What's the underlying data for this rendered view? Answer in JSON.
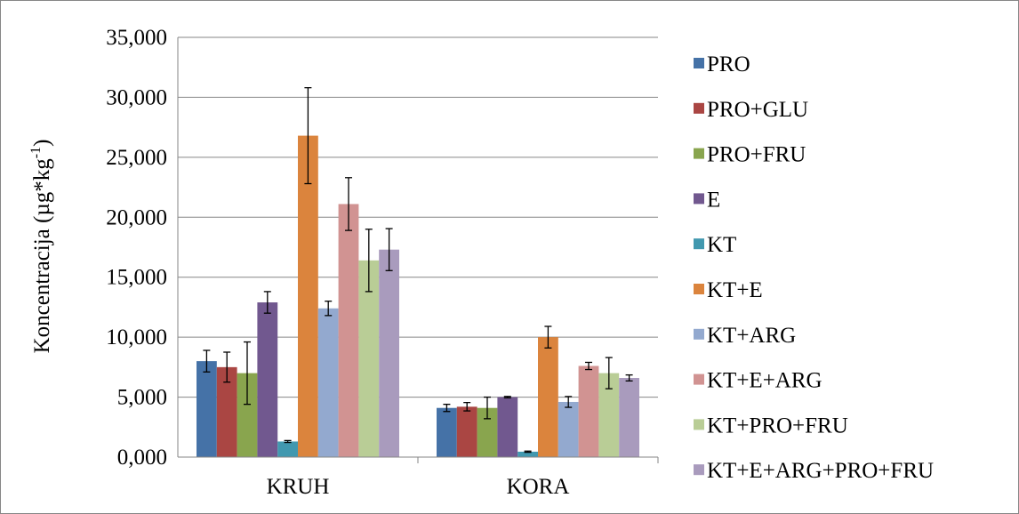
{
  "chart_data": {
    "type": "bar",
    "categories": [
      "KRUH",
      "KORA"
    ],
    "ylabel": "Koncentracija (µg*kg-1)",
    "ylabel_base": "Koncentracija (µg*kg",
    "ylabel_sup": "-1",
    "ylabel_close": ")",
    "ylim": [
      0,
      35000
    ],
    "yticks": [
      0,
      5000,
      10000,
      15000,
      20000,
      25000,
      30000,
      35000
    ],
    "ytick_labels": [
      "0,000",
      "5,000",
      "10,000",
      "15,000",
      "20,000",
      "25,000",
      "30,000",
      "35,000"
    ],
    "grid": true,
    "legend_position": "right",
    "error_bars": true,
    "series": [
      {
        "name": "PRO",
        "color": "#4572a7",
        "values": [
          8000,
          4100
        ],
        "errors": [
          900,
          300
        ]
      },
      {
        "name": "PRO+GLU",
        "color": "#aa4643",
        "values": [
          7500,
          4200
        ],
        "errors": [
          1250,
          350
        ]
      },
      {
        "name": "PRO+FRU",
        "color": "#89a54e",
        "values": [
          7000,
          4100
        ],
        "errors": [
          2600,
          900
        ]
      },
      {
        "name": "E",
        "color": "#71588f",
        "values": [
          12900,
          5000
        ],
        "errors": [
          900,
          60
        ]
      },
      {
        "name": "KT",
        "color": "#4198af",
        "values": [
          1300,
          450
        ],
        "errors": [
          80,
          50
        ]
      },
      {
        "name": "KT+E",
        "color": "#db843d",
        "values": [
          26800,
          10000
        ],
        "errors": [
          4000,
          900
        ]
      },
      {
        "name": "KT+ARG",
        "color": "#93a9cf",
        "values": [
          12400,
          4600
        ],
        "errors": [
          600,
          450
        ]
      },
      {
        "name": "KT+E+ARG",
        "color": "#d19392",
        "values": [
          21100,
          7600
        ],
        "errors": [
          2200,
          300
        ]
      },
      {
        "name": "KT+PRO+FRU",
        "color": "#b9cd96",
        "values": [
          16400,
          7000
        ],
        "errors": [
          2600,
          1300
        ]
      },
      {
        "name": "KT+E+ARG+PRO+FRU",
        "color": "#a99bbd",
        "values": [
          17300,
          6600
        ],
        "errors": [
          1750,
          250
        ]
      }
    ]
  }
}
